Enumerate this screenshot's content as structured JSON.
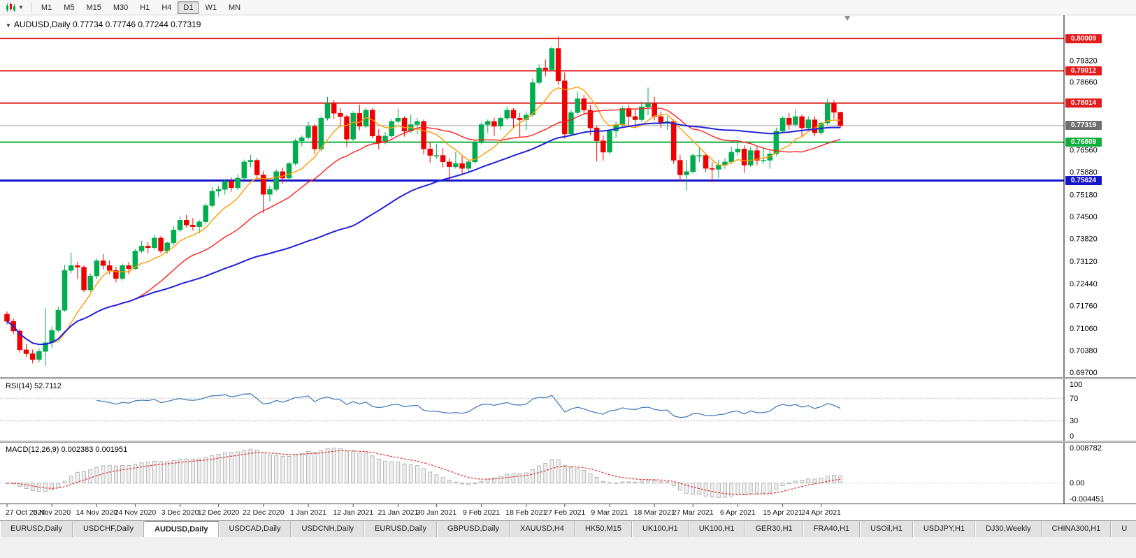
{
  "toolbar": {
    "timeframes": [
      "M1",
      "M5",
      "M15",
      "M30",
      "H1",
      "H4",
      "D1",
      "W1",
      "MN"
    ],
    "active_timeframe": "D1"
  },
  "chart": {
    "title": "AUDUSD,Daily",
    "ohlc_text": "0.77734 0.77746 0.77244 0.77319"
  },
  "rsi": {
    "label": "RSI(14) 52.7112",
    "period": 14,
    "value": 52.7112,
    "upper": 70,
    "lower": 30,
    "levels": [
      "100",
      "70",
      "30",
      "0"
    ],
    "color": "#4a7ebb"
  },
  "macd": {
    "label": "MACD(12,26,9) 0.002383 0.001951",
    "macd_value": 0.002383,
    "signal_value": 0.001951,
    "axis_labels": [
      "0.008782",
      "0.00",
      "-0.004451"
    ],
    "histogram_color": "#a8a8a8",
    "signal_color": "#e03030"
  },
  "tabs": [
    {
      "label": "EURUSD,Daily",
      "active": false
    },
    {
      "label": "USDCHF,Daily",
      "active": false
    },
    {
      "label": "AUDUSD,Daily",
      "active": true
    },
    {
      "label": "USDCAD,Daily",
      "active": false
    },
    {
      "label": "USDCNH,Daily",
      "active": false
    },
    {
      "label": "EURUSD,Daily",
      "active": false
    },
    {
      "label": "GBPUSD,Daily",
      "active": false
    },
    {
      "label": "XAUUSD,H4",
      "active": false
    },
    {
      "label": "HK50,M15",
      "active": false
    },
    {
      "label": "UK100,H1",
      "active": false
    },
    {
      "label": "UK100,H1",
      "active": false
    },
    {
      "label": "GER30,H1",
      "active": false
    },
    {
      "label": "FRA40,H1",
      "active": false
    },
    {
      "label": "USOil,H1",
      "active": false
    },
    {
      "label": "USDJPY,H1",
      "active": false
    },
    {
      "label": "DJ30,Weekly",
      "active": false
    },
    {
      "label": "CHINA300,H1",
      "active": false
    },
    {
      "label": "U",
      "active": false
    }
  ],
  "chart_data": {
    "type": "candlestick",
    "symbol": "AUDUSD",
    "period": "Daily",
    "ohlc_current": {
      "open": 0.77734,
      "high": 0.77746,
      "low": 0.77244,
      "close": 0.77319
    },
    "price_range": [
      0.696,
      0.8068
    ],
    "up_color": "#00ad4e",
    "down_color": "#ee0000",
    "y_axis_labels": [
      "0.79320",
      "0.78660",
      "0.76560",
      "0.75880",
      "0.75180",
      "0.74500",
      "0.73820",
      "0.73120",
      "0.72440",
      "0.71760",
      "0.71060",
      "0.70380",
      "0.69700"
    ],
    "horizontal_lines": [
      {
        "price": 0.80009,
        "label": "0.80009",
        "color": "#e21b1b",
        "width": 2
      },
      {
        "price": 0.79012,
        "label": "0.79012",
        "color": "#e21b1b",
        "width": 2
      },
      {
        "price": 0.78014,
        "label": "0.78014",
        "color": "#e21b1b",
        "width": 2
      },
      {
        "price": 0.76809,
        "label": "0.76809",
        "color": "#0faf3d",
        "width": 2
      },
      {
        "price": 0.75624,
        "label": "0.75624",
        "color": "#1515c8",
        "width": 3
      }
    ],
    "current_price": {
      "price": 0.77319,
      "label": "0.77319",
      "color": "#6f6f6f"
    },
    "moving_averages": [
      {
        "name": "fast",
        "period": 8,
        "color": "#ff9c00",
        "width": 1.4
      },
      {
        "name": "medium",
        "period": 21,
        "color": "#ff2020",
        "width": 1.4
      },
      {
        "name": "slow",
        "period": 55,
        "color": "#2020dd",
        "width": 2
      }
    ],
    "x_labels": [
      "27 Oct 2020",
      "5 Nov 2020",
      "14 Nov 2020",
      "24 Nov 2020",
      "3 Dec 2020",
      "12 Dec 2020",
      "22 Dec 2020",
      "1 Jan 2021",
      "12 Jan 2021",
      "21 Jan 2021",
      "30 Jan 2021",
      "9 Feb 2021",
      "18 Feb 2021",
      "27 Feb 2021",
      "9 Mar 2021",
      "18 Mar 2021",
      "27 Mar 2021",
      "6 Apr 2021",
      "15 Apr 2021",
      "24 Apr 2021"
    ],
    "x_label_indices": [
      0,
      7,
      14,
      20,
      27,
      33,
      40,
      47,
      54,
      61,
      67,
      74,
      81,
      87,
      94,
      101,
      107,
      114,
      121,
      127
    ],
    "candles": [
      [
        0.715,
        0.7158,
        0.7118,
        0.7128
      ],
      [
        0.7128,
        0.7136,
        0.7088,
        0.7098
      ],
      [
        0.7098,
        0.7105,
        0.7031,
        0.704
      ],
      [
        0.704,
        0.7058,
        0.7018,
        0.7028
      ],
      [
        0.7028,
        0.7041,
        0.6998,
        0.701
      ],
      [
        0.701,
        0.7044,
        0.7001,
        0.7035
      ],
      [
        0.7035,
        0.717,
        0.6991,
        0.7062
      ],
      [
        0.7062,
        0.7112,
        0.7046,
        0.71
      ],
      [
        0.71,
        0.7173,
        0.7094,
        0.7162
      ],
      [
        0.7162,
        0.7302,
        0.7158,
        0.7285
      ],
      [
        0.7285,
        0.734,
        0.7276,
        0.73
      ],
      [
        0.73,
        0.7312,
        0.7258,
        0.7295
      ],
      [
        0.7295,
        0.7301,
        0.7218,
        0.7225
      ],
      [
        0.7225,
        0.7276,
        0.7219,
        0.7268
      ],
      [
        0.7268,
        0.7322,
        0.7258,
        0.7315
      ],
      [
        0.7315,
        0.7336,
        0.7288,
        0.73
      ],
      [
        0.73,
        0.7316,
        0.7273,
        0.7285
      ],
      [
        0.7285,
        0.7296,
        0.7248,
        0.726
      ],
      [
        0.726,
        0.7306,
        0.7254,
        0.73
      ],
      [
        0.73,
        0.7311,
        0.7273,
        0.729
      ],
      [
        0.729,
        0.7352,
        0.7286,
        0.7345
      ],
      [
        0.7345,
        0.7376,
        0.7339,
        0.736
      ],
      [
        0.736,
        0.7372,
        0.7338,
        0.7355
      ],
      [
        0.7355,
        0.7396,
        0.7349,
        0.7385
      ],
      [
        0.7385,
        0.7391,
        0.7338,
        0.7345
      ],
      [
        0.7345,
        0.7374,
        0.7337,
        0.737
      ],
      [
        0.737,
        0.7422,
        0.7364,
        0.741
      ],
      [
        0.741,
        0.7452,
        0.7404,
        0.744
      ],
      [
        0.744,
        0.7456,
        0.7418,
        0.7425
      ],
      [
        0.7425,
        0.7446,
        0.7408,
        0.742
      ],
      [
        0.742,
        0.7441,
        0.7399,
        0.7435
      ],
      [
        0.7435,
        0.7492,
        0.7429,
        0.7485
      ],
      [
        0.7485,
        0.7542,
        0.7479,
        0.753
      ],
      [
        0.753,
        0.7546,
        0.7513,
        0.7535
      ],
      [
        0.7535,
        0.7567,
        0.7519,
        0.756
      ],
      [
        0.756,
        0.7572,
        0.7528,
        0.754
      ],
      [
        0.754,
        0.7582,
        0.7533,
        0.757
      ],
      [
        0.757,
        0.7627,
        0.7564,
        0.762
      ],
      [
        0.762,
        0.7642,
        0.7604,
        0.7625
      ],
      [
        0.7625,
        0.7632,
        0.7568,
        0.758
      ],
      [
        0.758,
        0.7592,
        0.7462,
        0.752
      ],
      [
        0.752,
        0.7547,
        0.7498,
        0.7535
      ],
      [
        0.7535,
        0.7597,
        0.7529,
        0.759
      ],
      [
        0.759,
        0.7602,
        0.7553,
        0.757
      ],
      [
        0.757,
        0.7622,
        0.7563,
        0.7615
      ],
      [
        0.7615,
        0.7692,
        0.7609,
        0.7685
      ],
      [
        0.7685,
        0.7702,
        0.7668,
        0.7695
      ],
      [
        0.7695,
        0.7744,
        0.7688,
        0.773
      ],
      [
        0.773,
        0.7736,
        0.7644,
        0.766
      ],
      [
        0.766,
        0.7762,
        0.7653,
        0.7755
      ],
      [
        0.7755,
        0.782,
        0.7748,
        0.78
      ],
      [
        0.78,
        0.7811,
        0.7753,
        0.777
      ],
      [
        0.777,
        0.7786,
        0.7728,
        0.776
      ],
      [
        0.776,
        0.7766,
        0.7666,
        0.769
      ],
      [
        0.769,
        0.7776,
        0.7684,
        0.777
      ],
      [
        0.777,
        0.7796,
        0.7718,
        0.773
      ],
      [
        0.773,
        0.7786,
        0.7724,
        0.778
      ],
      [
        0.778,
        0.7786,
        0.7693,
        0.77
      ],
      [
        0.77,
        0.7721,
        0.7659,
        0.768
      ],
      [
        0.768,
        0.7712,
        0.7674,
        0.77
      ],
      [
        0.77,
        0.7752,
        0.7694,
        0.7745
      ],
      [
        0.7745,
        0.7784,
        0.7739,
        0.7755
      ],
      [
        0.7755,
        0.7761,
        0.7698,
        0.7715
      ],
      [
        0.7715,
        0.7766,
        0.7709,
        0.7735
      ],
      [
        0.7735,
        0.7756,
        0.7704,
        0.7745
      ],
      [
        0.7745,
        0.7751,
        0.7643,
        0.766
      ],
      [
        0.766,
        0.7681,
        0.7618,
        0.764
      ],
      [
        0.764,
        0.7676,
        0.7629,
        0.764
      ],
      [
        0.764,
        0.7663,
        0.7603,
        0.762
      ],
      [
        0.762,
        0.7631,
        0.7563,
        0.7605
      ],
      [
        0.7605,
        0.7651,
        0.7599,
        0.7615
      ],
      [
        0.7615,
        0.7641,
        0.7581,
        0.76
      ],
      [
        0.76,
        0.7626,
        0.7584,
        0.762
      ],
      [
        0.762,
        0.7691,
        0.7614,
        0.768
      ],
      [
        0.768,
        0.7741,
        0.7674,
        0.7735
      ],
      [
        0.7735,
        0.7751,
        0.7709,
        0.7745
      ],
      [
        0.7745,
        0.7756,
        0.7699,
        0.773
      ],
      [
        0.773,
        0.7761,
        0.7719,
        0.7755
      ],
      [
        0.7755,
        0.7791,
        0.7749,
        0.778
      ],
      [
        0.778,
        0.7786,
        0.7724,
        0.7755
      ],
      [
        0.7755,
        0.7771,
        0.7697,
        0.775
      ],
      [
        0.775,
        0.7776,
        0.7719,
        0.7765
      ],
      [
        0.7765,
        0.7877,
        0.7759,
        0.7865
      ],
      [
        0.7865,
        0.7921,
        0.7859,
        0.791
      ],
      [
        0.791,
        0.7936,
        0.7884,
        0.7905
      ],
      [
        0.7905,
        0.7976,
        0.7899,
        0.797
      ],
      [
        0.797,
        0.8007,
        0.7858,
        0.787
      ],
      [
        0.787,
        0.7896,
        0.7692,
        0.7706
      ],
      [
        0.7706,
        0.7781,
        0.7699,
        0.7772
      ],
      [
        0.7772,
        0.7838,
        0.7764,
        0.7815
      ],
      [
        0.7815,
        0.7826,
        0.7768,
        0.778
      ],
      [
        0.778,
        0.7796,
        0.7703,
        0.7725
      ],
      [
        0.7725,
        0.7731,
        0.7621,
        0.7685
      ],
      [
        0.7685,
        0.7701,
        0.7624,
        0.765
      ],
      [
        0.765,
        0.7721,
        0.7644,
        0.7715
      ],
      [
        0.7715,
        0.7746,
        0.7694,
        0.7735
      ],
      [
        0.7735,
        0.7791,
        0.7729,
        0.7785
      ],
      [
        0.7785,
        0.7796,
        0.7729,
        0.776
      ],
      [
        0.776,
        0.7781,
        0.7724,
        0.775
      ],
      [
        0.775,
        0.7806,
        0.7744,
        0.779
      ],
      [
        0.779,
        0.7849,
        0.7764,
        0.78
      ],
      [
        0.78,
        0.7821,
        0.7748,
        0.776
      ],
      [
        0.776,
        0.7776,
        0.7724,
        0.774
      ],
      [
        0.774,
        0.7761,
        0.7719,
        0.7745
      ],
      [
        0.7745,
        0.7751,
        0.7614,
        0.7625
      ],
      [
        0.7625,
        0.7641,
        0.7559,
        0.758
      ],
      [
        0.758,
        0.7626,
        0.7531,
        0.759
      ],
      [
        0.759,
        0.7646,
        0.7584,
        0.764
      ],
      [
        0.764,
        0.7666,
        0.7619,
        0.764
      ],
      [
        0.764,
        0.7646,
        0.7589,
        0.76
      ],
      [
        0.76,
        0.7621,
        0.7557,
        0.7597
      ],
      [
        0.7597,
        0.7626,
        0.7569,
        0.761
      ],
      [
        0.761,
        0.7631,
        0.7599,
        0.762
      ],
      [
        0.762,
        0.7666,
        0.7614,
        0.765
      ],
      [
        0.765,
        0.7681,
        0.7639,
        0.766
      ],
      [
        0.766,
        0.7671,
        0.7586,
        0.761
      ],
      [
        0.761,
        0.7666,
        0.7604,
        0.7655
      ],
      [
        0.7655,
        0.7666,
        0.7609,
        0.7625
      ],
      [
        0.7625,
        0.7661,
        0.7614,
        0.7625
      ],
      [
        0.7625,
        0.7656,
        0.7599,
        0.7645
      ],
      [
        0.7645,
        0.7726,
        0.7639,
        0.7715
      ],
      [
        0.7715,
        0.7761,
        0.7709,
        0.7755
      ],
      [
        0.7755,
        0.7771,
        0.7719,
        0.7735
      ],
      [
        0.7735,
        0.7781,
        0.7729,
        0.776
      ],
      [
        0.776,
        0.7766,
        0.7699,
        0.7725
      ],
      [
        0.7725,
        0.7761,
        0.7719,
        0.775
      ],
      [
        0.775,
        0.7761,
        0.7699,
        0.771
      ],
      [
        0.771,
        0.7746,
        0.7704,
        0.774
      ],
      [
        0.774,
        0.7815,
        0.7734,
        0.78
      ],
      [
        0.78,
        0.7811,
        0.7753,
        0.7773
      ],
      [
        0.77734,
        0.77746,
        0.77244,
        0.77319
      ]
    ]
  }
}
